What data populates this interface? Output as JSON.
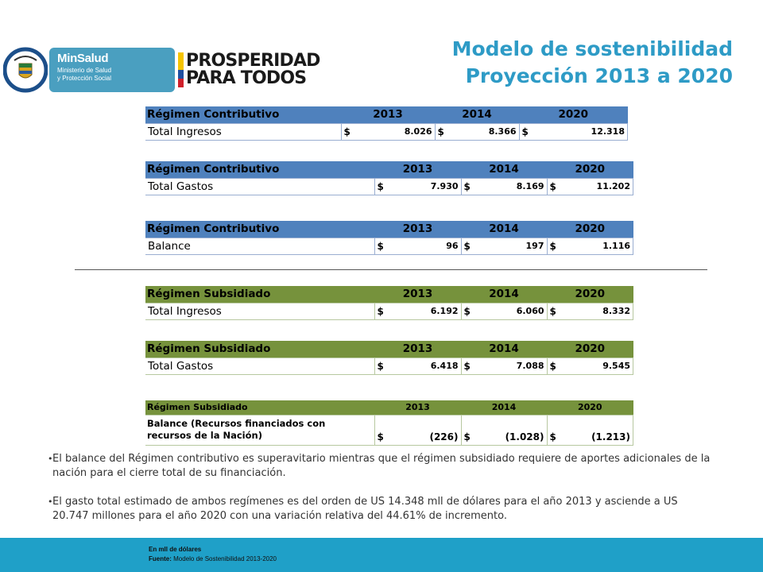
{
  "header": {
    "title_line1": "Modelo de sostenibilidad",
    "title_line2": "Proyección 2013 a 2020",
    "minsalud_name": "MinSalud",
    "minsalud_sub1": "Ministerio de Salud",
    "minsalud_sub2": "y Protección Social",
    "prosperidad_line1": "PROSPERIDAD",
    "prosperidad_line2": "PARA TODOS",
    "coat_text": "REPÚBLICA DE COLOMBIA"
  },
  "colors": {
    "title": "#2e9bc6",
    "blue_header": "#4f81bd",
    "green_header": "#76923c",
    "footer": "#1fa0c8"
  },
  "tables": [
    {
      "regimen": "Régimen Contributivo",
      "years": [
        "2013",
        "2014",
        "2020"
      ],
      "row_label": "Total Ingresos",
      "currency": "$",
      "values": [
        "8.026",
        "8.366",
        "12.318"
      ]
    },
    {
      "regimen": "Régimen Contributivo",
      "years": [
        "2013",
        "2014",
        "2020"
      ],
      "row_label": "Total Gastos",
      "currency": "$",
      "values": [
        "7.930",
        "8.169",
        "11.202"
      ]
    },
    {
      "regimen": "Régimen Contributivo",
      "years": [
        "2013",
        "2014",
        "2020"
      ],
      "row_label": "Balance",
      "currency": "$",
      "values": [
        "96",
        "197",
        "1.116"
      ]
    },
    {
      "regimen": "Régimen Subsidiado",
      "years": [
        "2013",
        "2014",
        "2020"
      ],
      "row_label": "Total Ingresos",
      "currency": "$",
      "values": [
        "6.192",
        "6.060",
        "8.332"
      ]
    },
    {
      "regimen": "Régimen Subsidiado",
      "years": [
        "2013",
        "2014",
        "2020"
      ],
      "row_label": "Total Gastos",
      "currency": "$",
      "values": [
        "6.418",
        "7.088",
        "9.545"
      ]
    },
    {
      "regimen": "Régimen Subsidiado",
      "years": [
        "2013",
        "2014",
        "2020"
      ],
      "row_label": "Balance (Recursos financiados con recursos de la Nación)",
      "currency": "$",
      "values": [
        "(226)",
        "(1.028)",
        "(1.213)"
      ]
    }
  ],
  "bullets": [
    "El balance del Régimen contributivo es superavitario mientras que el régimen subsidiado requiere de aportes adicionales de la nación para el cierre total de su financiación.",
    "El gasto total estimado de ambos regímenes es del orden de  US 14.348 mll de dólares para el año 2013 y asciende a US 20.747 millones para el año 2020 con una variación relativa del 44.61% de incremento."
  ],
  "footer": {
    "note": "En mll de dólares",
    "source_label": "Fuente:",
    "source_text": "Modelo de Sostenibilidad 2013-2020"
  }
}
